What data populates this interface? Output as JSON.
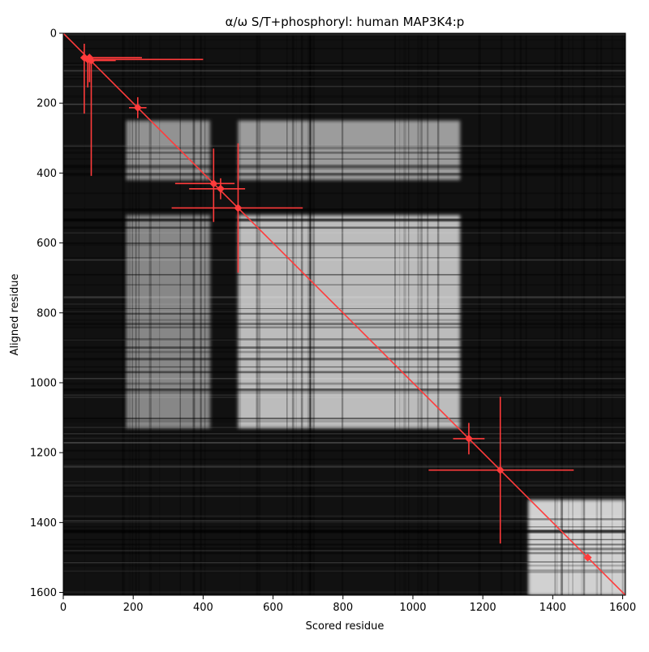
{
  "chart_data": {
    "type": "heatmap",
    "title": "α/ω S/T+phosphoryl: human MAP3K4:p",
    "xlabel": "Scored residue",
    "ylabel": "Aligned residue",
    "xlim": [
      0,
      1608
    ],
    "ylim": [
      1608,
      0
    ],
    "y_inverted": true,
    "x_ticks": [
      0,
      200,
      400,
      600,
      800,
      1000,
      1200,
      1400,
      1600
    ],
    "y_ticks": [
      0,
      200,
      400,
      600,
      800,
      1000,
      1200,
      1400,
      1600
    ],
    "colormap": "grayscale",
    "background_color": "#111111",
    "bright_blocks": [
      {
        "x": [
          180,
          420
        ],
        "y": [
          250,
          420
        ],
        "level": 0.55
      },
      {
        "x": [
          500,
          1135
        ],
        "y": [
          250,
          420
        ],
        "level": 0.6
      },
      {
        "x": [
          180,
          420
        ],
        "y": [
          520,
          1130
        ],
        "level": 0.5
      },
      {
        "x": [
          500,
          1135
        ],
        "y": [
          520,
          1130
        ],
        "level": 0.75
      },
      {
        "x": [
          1330,
          1608
        ],
        "y": [
          1335,
          1608
        ],
        "level": 0.85
      }
    ],
    "diagonal": {
      "from": 0,
      "to": 1608,
      "color": "#ff3b3b"
    },
    "markers_color": "#ff3b3b",
    "markers": [
      {
        "x": 60,
        "y": 70,
        "xerr": [
          0,
          160
        ],
        "yerr": [
          40,
          160
        ]
      },
      {
        "x": 70,
        "y": 75,
        "xerr": [
          0,
          330
        ],
        "yerr": [
          0,
          80
        ]
      },
      {
        "x": 75,
        "y": 70,
        "xerr": [
          0,
          150
        ],
        "yerr": [
          0,
          70
        ]
      },
      {
        "x": 80,
        "y": 78,
        "xerr": [
          0,
          70
        ],
        "yerr": [
          0,
          330
        ]
      },
      {
        "x": 213,
        "y": 213,
        "xerr": [
          25,
          25
        ],
        "yerr": [
          30,
          30
        ]
      },
      {
        "x": 430,
        "y": 430,
        "xerr": [
          110,
          60
        ],
        "yerr": [
          100,
          110
        ]
      },
      {
        "x": 450,
        "y": 445,
        "xerr": [
          90,
          70
        ],
        "yerr": [
          30,
          30
        ]
      },
      {
        "x": 500,
        "y": 500,
        "xerr": [
          190,
          185
        ],
        "yerr": [
          185,
          185
        ]
      },
      {
        "x": 1160,
        "y": 1160,
        "xerr": [
          45,
          45
        ],
        "yerr": [
          45,
          45
        ]
      },
      {
        "x": 1250,
        "y": 1250,
        "xerr": [
          205,
          210
        ],
        "yerr": [
          210,
          210
        ]
      },
      {
        "x": 1500,
        "y": 1500,
        "xerr": [
          10,
          10
        ],
        "yerr": [
          10,
          10
        ]
      }
    ]
  }
}
